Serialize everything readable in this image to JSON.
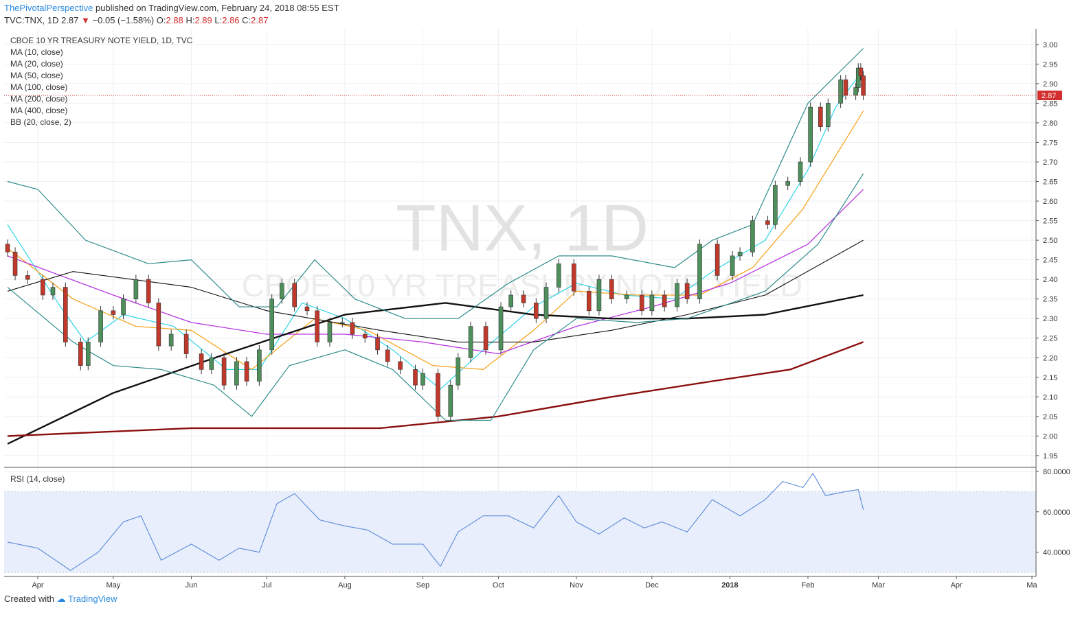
{
  "header": {
    "author": "ThePivotalPerspective",
    "published": "published on TradingView.com, February 24, 2018 08:55 EST",
    "symbol": "TVC:TNX, 1D",
    "price": "2.87",
    "change": "−0.05 (−1.58%)",
    "o_label": "O:",
    "o_val": "2.88",
    "h_label": "H:",
    "h_val": "2.89",
    "l_label": "L:",
    "l_val": "2.86",
    "c_label": "C:",
    "c_val": "2.87"
  },
  "legend": [
    "CBOE 10 YR TREASURY NOTE YIELD, 1D, TVC",
    "MA (10, close)",
    "MA (20, close)",
    "MA (50, close)",
    "MA (100, close)",
    "MA (200, close)",
    "MA (400, close)",
    "BB (20, close, 2)"
  ],
  "watermark": {
    "big": "TNX, 1D",
    "small": "CBOE 10 YR TREASURY NOTE YIELD"
  },
  "rsi_label": "RSI (14, close)",
  "footer": {
    "created": "Created with",
    "brand": "TradingView"
  },
  "colors": {
    "up": "#4e8f5c",
    "down": "#c0392b",
    "ma10": "#2ed3e6",
    "ma20": "#f5a623",
    "ma50": "#b833e0",
    "ma100": "#111111",
    "ma200": "#111111",
    "ma400": "#8b0f0f",
    "bb": "#2e8b8b",
    "rsi": "#5b8ad9",
    "rsi_band": "#e8eefc",
    "lastprice": "#d32f2f"
  },
  "chart_data": [
    {
      "type": "line",
      "title": "CBOE 10 YR TREASURY NOTE YIELD, 1D, TVC",
      "y_ticks": [
        "3.00",
        "2.95",
        "2.90",
        "2.85",
        "2.80",
        "2.75",
        "2.70",
        "2.65",
        "2.60",
        "2.55",
        "2.50",
        "2.45",
        "2.40",
        "2.35",
        "2.30",
        "2.25",
        "2.20",
        "2.15",
        "2.10",
        "2.05",
        "2.00",
        "1.95"
      ],
      "ylim": [
        1.92,
        3.04
      ],
      "last_price": 2.87,
      "x_ticks": [
        "Apr",
        "May",
        "Jun",
        "Jul",
        "Aug",
        "Sep",
        "Oct",
        "Nov",
        "Dec",
        "2018",
        "Feb",
        "Mar",
        "Apr",
        "Ma"
      ],
      "x_tick_dates": [
        "2017-04-01",
        "2017-05-01",
        "2017-06-01",
        "2017-07-01",
        "2017-08-01",
        "2017-09-01",
        "2017-10-01",
        "2017-11-01",
        "2017-12-01",
        "2018-01-01",
        "2018-02-01",
        "2018-03-01",
        "2018-04-01",
        "2018-05-01"
      ],
      "close_series": [
        [
          "2017-03-20",
          2.47
        ],
        [
          "2017-03-23",
          2.41
        ],
        [
          "2017-03-28",
          2.4
        ],
        [
          "2017-04-03",
          2.36
        ],
        [
          "2017-04-07",
          2.38
        ],
        [
          "2017-04-12",
          2.24
        ],
        [
          "2017-04-18",
          2.18
        ],
        [
          "2017-04-21",
          2.24
        ],
        [
          "2017-04-26",
          2.32
        ],
        [
          "2017-05-01",
          2.31
        ],
        [
          "2017-05-05",
          2.35
        ],
        [
          "2017-05-10",
          2.4
        ],
        [
          "2017-05-15",
          2.34
        ],
        [
          "2017-05-19",
          2.23
        ],
        [
          "2017-05-24",
          2.26
        ],
        [
          "2017-05-30",
          2.21
        ],
        [
          "2017-06-05",
          2.17
        ],
        [
          "2017-06-09",
          2.2
        ],
        [
          "2017-06-14",
          2.13
        ],
        [
          "2017-06-19",
          2.19
        ],
        [
          "2017-06-23",
          2.14
        ],
        [
          "2017-06-28",
          2.22
        ],
        [
          "2017-07-03",
          2.35
        ],
        [
          "2017-07-07",
          2.39
        ],
        [
          "2017-07-12",
          2.33
        ],
        [
          "2017-07-17",
          2.32
        ],
        [
          "2017-07-21",
          2.24
        ],
        [
          "2017-07-26",
          2.29
        ],
        [
          "2017-07-31",
          2.29
        ],
        [
          "2017-08-04",
          2.26
        ],
        [
          "2017-08-09",
          2.25
        ],
        [
          "2017-08-14",
          2.22
        ],
        [
          "2017-08-18",
          2.19
        ],
        [
          "2017-08-23",
          2.17
        ],
        [
          "2017-08-29",
          2.13
        ],
        [
          "2017-09-01",
          2.16
        ],
        [
          "2017-09-07",
          2.05
        ],
        [
          "2017-09-12",
          2.13
        ],
        [
          "2017-09-15",
          2.2
        ],
        [
          "2017-09-20",
          2.28
        ],
        [
          "2017-09-26",
          2.22
        ],
        [
          "2017-10-02",
          2.33
        ],
        [
          "2017-10-06",
          2.36
        ],
        [
          "2017-10-11",
          2.34
        ],
        [
          "2017-10-16",
          2.3
        ],
        [
          "2017-10-20",
          2.38
        ],
        [
          "2017-10-25",
          2.44
        ],
        [
          "2017-10-31",
          2.37
        ],
        [
          "2017-11-06",
          2.32
        ],
        [
          "2017-11-10",
          2.4
        ],
        [
          "2017-11-15",
          2.35
        ],
        [
          "2017-11-21",
          2.36
        ],
        [
          "2017-11-27",
          2.32
        ],
        [
          "2017-12-01",
          2.36
        ],
        [
          "2017-12-06",
          2.33
        ],
        [
          "2017-12-11",
          2.39
        ],
        [
          "2017-12-15",
          2.35
        ],
        [
          "2017-12-20",
          2.49
        ],
        [
          "2017-12-27",
          2.41
        ],
        [
          "2018-01-02",
          2.46
        ],
        [
          "2018-01-05",
          2.47
        ],
        [
          "2018-01-10",
          2.55
        ],
        [
          "2018-01-16",
          2.54
        ],
        [
          "2018-01-19",
          2.64
        ],
        [
          "2018-01-24",
          2.65
        ],
        [
          "2018-01-29",
          2.7
        ],
        [
          "2018-02-02",
          2.84
        ],
        [
          "2018-02-06",
          2.79
        ],
        [
          "2018-02-09",
          2.85
        ],
        [
          "2018-02-14",
          2.91
        ],
        [
          "2018-02-16",
          2.87
        ],
        [
          "2018-02-20",
          2.89
        ],
        [
          "2018-02-21",
          2.94
        ],
        [
          "2018-02-22",
          2.92
        ],
        [
          "2018-02-23",
          2.87
        ]
      ],
      "series": [
        {
          "name": "MA (10, close)",
          "values": [
            [
              "2017-03-20",
              2.54
            ],
            [
              "2017-04-10",
              2.33
            ],
            [
              "2017-04-20",
              2.24
            ],
            [
              "2017-05-05",
              2.31
            ],
            [
              "2017-05-25",
              2.28
            ],
            [
              "2017-06-15",
              2.17
            ],
            [
              "2017-06-28",
              2.17
            ],
            [
              "2017-07-15",
              2.34
            ],
            [
              "2017-08-01",
              2.3
            ],
            [
              "2017-08-20",
              2.22
            ],
            [
              "2017-09-08",
              2.12
            ],
            [
              "2017-09-25",
              2.22
            ],
            [
              "2017-10-15",
              2.33
            ],
            [
              "2017-11-01",
              2.39
            ],
            [
              "2017-11-20",
              2.36
            ],
            [
              "2017-12-10",
              2.35
            ],
            [
              "2017-12-25",
              2.42
            ],
            [
              "2018-01-15",
              2.5
            ],
            [
              "2018-02-01",
              2.68
            ],
            [
              "2018-02-12",
              2.84
            ],
            [
              "2018-02-20",
              2.91
            ],
            [
              "2018-02-23",
              2.89
            ]
          ]
        },
        {
          "name": "MA (20, close)",
          "values": [
            [
              "2017-03-20",
              2.48
            ],
            [
              "2017-04-15",
              2.35
            ],
            [
              "2017-05-10",
              2.28
            ],
            [
              "2017-06-01",
              2.27
            ],
            [
              "2017-06-25",
              2.17
            ],
            [
              "2017-07-20",
              2.3
            ],
            [
              "2017-08-10",
              2.27
            ],
            [
              "2017-09-05",
              2.18
            ],
            [
              "2017-09-25",
              2.17
            ],
            [
              "2017-10-15",
              2.27
            ],
            [
              "2017-11-01",
              2.37
            ],
            [
              "2017-11-25",
              2.36
            ],
            [
              "2017-12-20",
              2.36
            ],
            [
              "2018-01-10",
              2.43
            ],
            [
              "2018-01-30",
              2.58
            ],
            [
              "2018-02-23",
              2.83
            ]
          ]
        },
        {
          "name": "MA (50, close)",
          "values": [
            [
              "2017-03-20",
              2.46
            ],
            [
              "2017-05-01",
              2.36
            ],
            [
              "2017-06-01",
              2.29
            ],
            [
              "2017-07-01",
              2.26
            ],
            [
              "2017-08-01",
              2.26
            ],
            [
              "2017-09-01",
              2.24
            ],
            [
              "2017-10-01",
              2.21
            ],
            [
              "2017-11-01",
              2.28
            ],
            [
              "2017-12-01",
              2.33
            ],
            [
              "2018-01-01",
              2.39
            ],
            [
              "2018-02-01",
              2.49
            ],
            [
              "2018-02-23",
              2.63
            ]
          ]
        },
        {
          "name": "MA (100, close)",
          "values": [
            [
              "2017-03-20",
              2.37
            ],
            [
              "2017-04-15",
              2.42
            ],
            [
              "2017-06-01",
              2.38
            ],
            [
              "2017-07-01",
              2.32
            ],
            [
              "2017-08-15",
              2.27
            ],
            [
              "2017-09-15",
              2.24
            ],
            [
              "2017-10-15",
              2.24
            ],
            [
              "2017-11-15",
              2.27
            ],
            [
              "2017-12-15",
              2.31
            ],
            [
              "2018-01-15",
              2.36
            ],
            [
              "2018-02-23",
              2.5
            ]
          ]
        },
        {
          "name": "MA (200, close)",
          "values": [
            [
              "2017-03-20",
              1.98
            ],
            [
              "2017-05-01",
              2.11
            ],
            [
              "2017-06-15",
              2.21
            ],
            [
              "2017-08-01",
              2.31
            ],
            [
              "2017-09-10",
              2.34
            ],
            [
              "2017-10-15",
              2.31
            ],
            [
              "2017-11-15",
              2.3
            ],
            [
              "2017-12-15",
              2.3
            ],
            [
              "2018-01-15",
              2.31
            ],
            [
              "2018-02-23",
              2.36
            ]
          ]
        },
        {
          "name": "MA (400, close)",
          "values": [
            [
              "2017-03-20",
              2.0
            ],
            [
              "2017-06-01",
              2.02
            ],
            [
              "2017-08-15",
              2.02
            ],
            [
              "2017-10-01",
              2.05
            ],
            [
              "2017-11-15",
              2.1
            ],
            [
              "2017-12-25",
              2.14
            ],
            [
              "2018-01-25",
              2.17
            ],
            [
              "2018-02-23",
              2.24
            ]
          ]
        },
        {
          "name": "BB upper",
          "values": [
            [
              "2017-03-20",
              2.65
            ],
            [
              "2017-04-01",
              2.63
            ],
            [
              "2017-04-20",
              2.5
            ],
            [
              "2017-05-15",
              2.44
            ],
            [
              "2017-06-01",
              2.45
            ],
            [
              "2017-06-20",
              2.33
            ],
            [
              "2017-07-05",
              2.33
            ],
            [
              "2017-07-20",
              2.45
            ],
            [
              "2017-08-05",
              2.35
            ],
            [
              "2017-08-25",
              2.3
            ],
            [
              "2017-09-15",
              2.3
            ],
            [
              "2017-10-05",
              2.39
            ],
            [
              "2017-10-25",
              2.46
            ],
            [
              "2017-11-15",
              2.46
            ],
            [
              "2017-12-10",
              2.43
            ],
            [
              "2017-12-25",
              2.5
            ],
            [
              "2018-01-10",
              2.54
            ],
            [
              "2018-02-01",
              2.85
            ],
            [
              "2018-02-23",
              2.99
            ]
          ]
        },
        {
          "name": "BB lower",
          "values": [
            [
              "2017-03-20",
              2.38
            ],
            [
              "2017-04-15",
              2.24
            ],
            [
              "2017-05-01",
              2.18
            ],
            [
              "2017-05-20",
              2.17
            ],
            [
              "2017-06-10",
              2.13
            ],
            [
              "2017-06-25",
              2.05
            ],
            [
              "2017-07-10",
              2.18
            ],
            [
              "2017-08-01",
              2.22
            ],
            [
              "2017-08-20",
              2.17
            ],
            [
              "2017-09-10",
              2.04
            ],
            [
              "2017-09-28",
              2.04
            ],
            [
              "2017-10-15",
              2.22
            ],
            [
              "2017-11-01",
              2.3
            ],
            [
              "2017-11-25",
              2.29
            ],
            [
              "2017-12-15",
              2.3
            ],
            [
              "2018-01-15",
              2.37
            ],
            [
              "2018-02-05",
              2.49
            ],
            [
              "2018-02-23",
              2.67
            ]
          ]
        }
      ]
    },
    {
      "type": "line",
      "title": "RSI (14, close)",
      "y_ticks": [
        "80.0000",
        "60.0000",
        "40.0000"
      ],
      "ylim": [
        28,
        82
      ],
      "bands": [
        70,
        30
      ],
      "series": [
        {
          "name": "RSI (14, close)",
          "values": [
            [
              "2017-03-20",
              45
            ],
            [
              "2017-04-01",
              42
            ],
            [
              "2017-04-14",
              31
            ],
            [
              "2017-04-25",
              40
            ],
            [
              "2017-05-05",
              55
            ],
            [
              "2017-05-12",
              58
            ],
            [
              "2017-05-20",
              36
            ],
            [
              "2017-06-01",
              44
            ],
            [
              "2017-06-12",
              36
            ],
            [
              "2017-06-20",
              42
            ],
            [
              "2017-06-28",
              40
            ],
            [
              "2017-07-05",
              64
            ],
            [
              "2017-07-12",
              69
            ],
            [
              "2017-07-22",
              56
            ],
            [
              "2017-08-01",
              53
            ],
            [
              "2017-08-10",
              51
            ],
            [
              "2017-08-20",
              44
            ],
            [
              "2017-09-01",
              44
            ],
            [
              "2017-09-08",
              33
            ],
            [
              "2017-09-15",
              50
            ],
            [
              "2017-09-25",
              58
            ],
            [
              "2017-10-05",
              58
            ],
            [
              "2017-10-15",
              52
            ],
            [
              "2017-10-25",
              68
            ],
            [
              "2017-11-01",
              55
            ],
            [
              "2017-11-10",
              49
            ],
            [
              "2017-11-20",
              57
            ],
            [
              "2017-11-28",
              52
            ],
            [
              "2017-12-05",
              55
            ],
            [
              "2017-12-15",
              50
            ],
            [
              "2017-12-25",
              66
            ],
            [
              "2018-01-05",
              58
            ],
            [
              "2018-01-15",
              66
            ],
            [
              "2018-01-22",
              75
            ],
            [
              "2018-01-30",
              72
            ],
            [
              "2018-02-03",
              79
            ],
            [
              "2018-02-08",
              68
            ],
            [
              "2018-02-16",
              70
            ],
            [
              "2018-02-21",
              71
            ],
            [
              "2018-02-23",
              61
            ]
          ]
        }
      ]
    }
  ]
}
